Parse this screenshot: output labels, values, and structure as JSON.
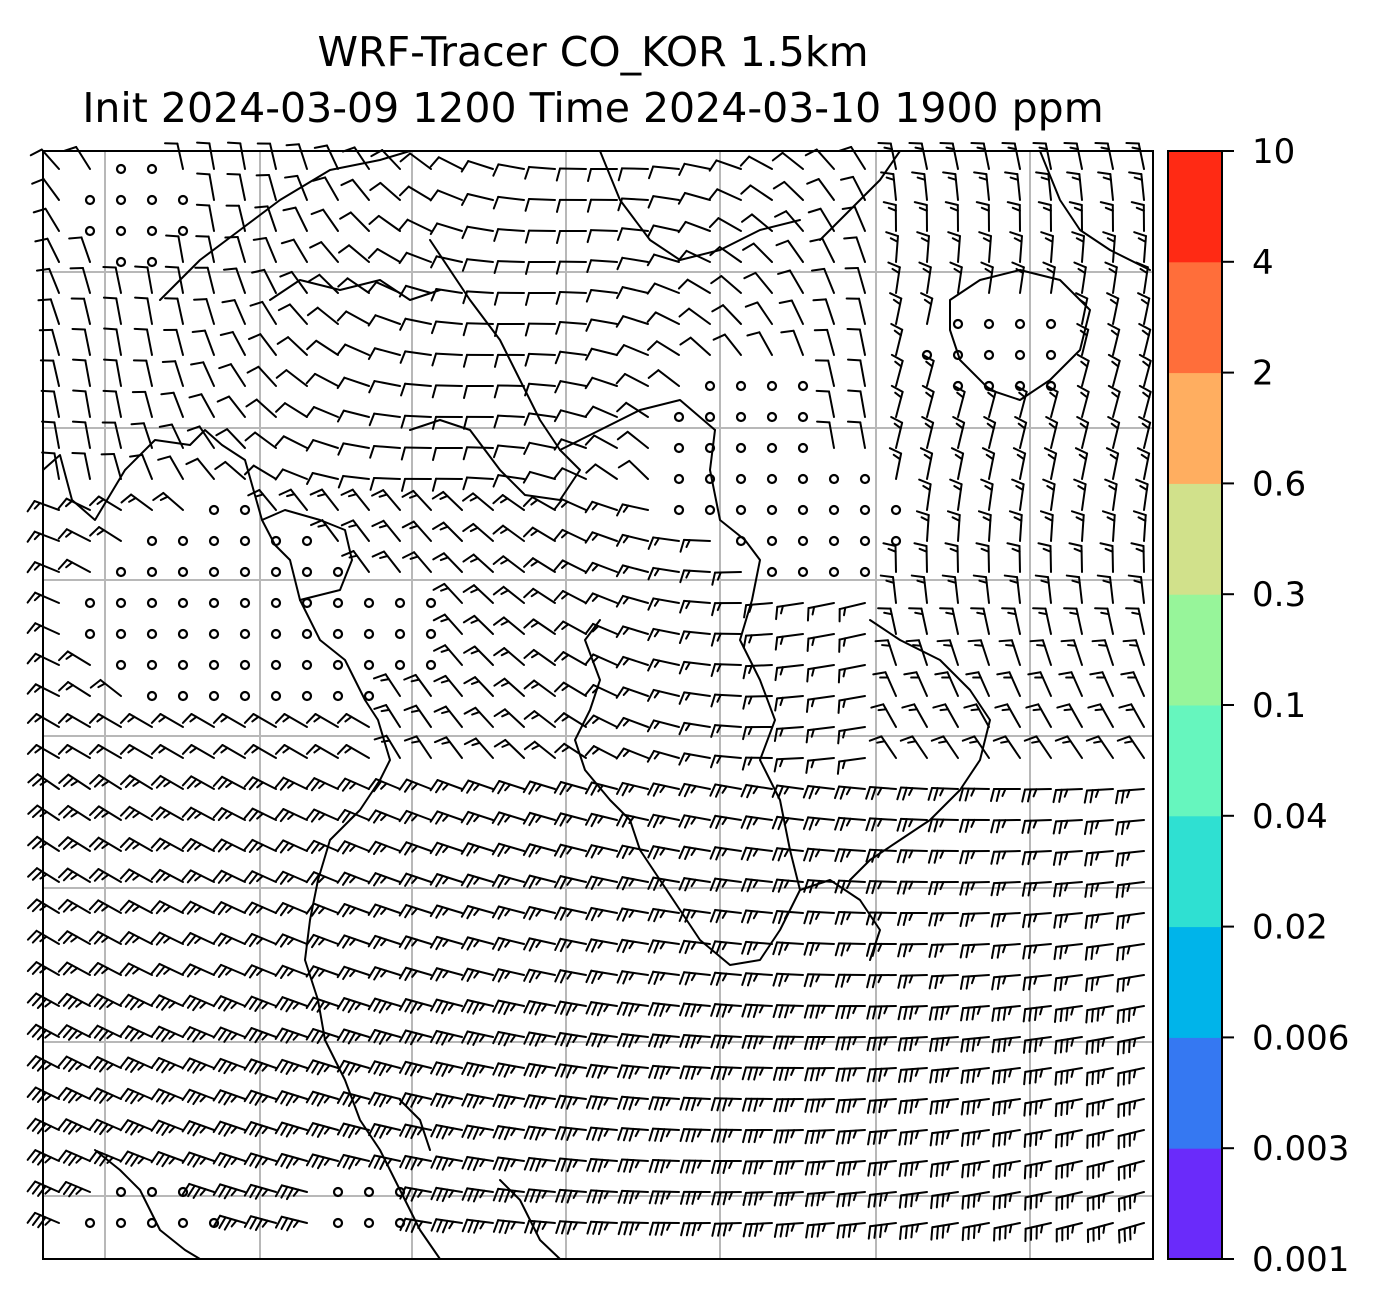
{
  "figure": {
    "title_line_1": "WRF-Tracer CO_KOR 1.5km",
    "title_line_2": "Init 2024-03-09 1200 Time 2024-03-10 1900 ppm"
  },
  "colorbar": {
    "levels": [
      "0.001",
      "0.003",
      "0.006",
      "0.02",
      "0.04",
      "0.1",
      "0.3",
      "0.6",
      "2",
      "4",
      "10"
    ],
    "colors": [
      "#6a2bfa",
      "#3578f2",
      "#00b4ea",
      "#2fe0d2",
      "#66f6be",
      "#97f59a",
      "#d1e18b",
      "#ffae60",
      "#ff6e3a",
      "#ff2a14"
    ]
  },
  "map": {
    "plot_type": "wind barbs over coastlines",
    "gridlines": true,
    "concentration_fill": "none visible",
    "colors": {
      "coastline": "#000000",
      "gridline": "#b8b8b8",
      "barb": "#000000"
    }
  }
}
